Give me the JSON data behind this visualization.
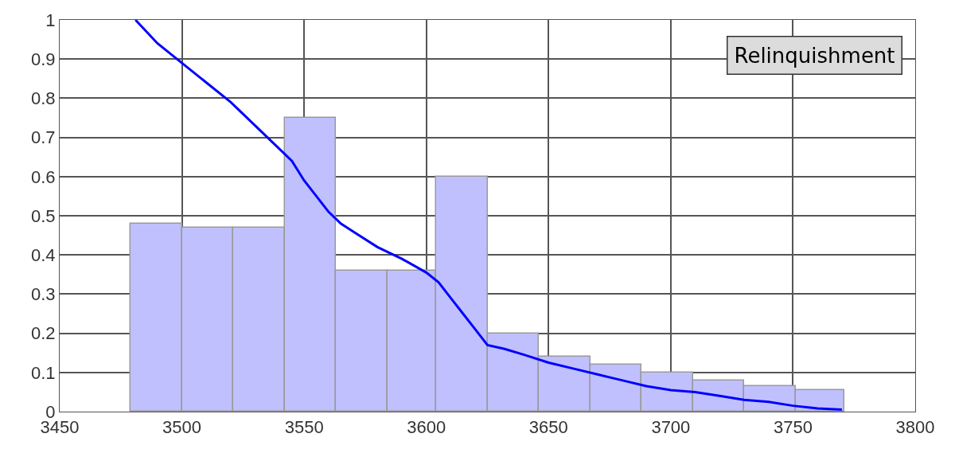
{
  "chart_data": {
    "type": "histogram",
    "bins": [
      3479,
      3500,
      3521,
      3542,
      3563,
      3584,
      3604,
      3625,
      3646,
      3667,
      3688,
      3709,
      3730,
      3751,
      3771
    ],
    "values": [
      0.48,
      0.47,
      0.47,
      0.75,
      0.36,
      0.36,
      0.6,
      0.2,
      0.14,
      0.12,
      0.1,
      0.08,
      0.065,
      0.055
    ],
    "color": "#c0c0ff",
    "series": [
      {
        "type": "line",
        "color": "#0000ff",
        "x": [
          3481,
          3490,
          3500,
          3510,
          3520,
          3530,
          3540,
          3545,
          3550,
          3555,
          3560,
          3565,
          3570,
          3580,
          3590,
          3600,
          3605,
          3610,
          3615,
          3620,
          3625,
          3632,
          3640,
          3650,
          3660,
          3670,
          3680,
          3690,
          3700,
          3710,
          3720,
          3730,
          3740,
          3750,
          3760,
          3770
        ],
        "values": [
          1.0,
          0.94,
          0.89,
          0.84,
          0.79,
          0.73,
          0.67,
          0.64,
          0.59,
          0.55,
          0.51,
          0.48,
          0.46,
          0.42,
          0.39,
          0.355,
          0.33,
          0.29,
          0.25,
          0.21,
          0.17,
          0.16,
          0.145,
          0.125,
          0.11,
          0.095,
          0.08,
          0.065,
          0.055,
          0.05,
          0.04,
          0.03,
          0.025,
          0.015,
          0.008,
          0.005
        ]
      }
    ],
    "annotations": [
      "Relinquishment"
    ],
    "xlim": [
      3450,
      3800
    ],
    "xticks": [
      3450,
      3500,
      3550,
      3600,
      3650,
      3700,
      3750,
      3800
    ],
    "ylim": [
      0,
      1
    ],
    "yticks": [
      0,
      0.1,
      0.2,
      0.3,
      0.4,
      0.5,
      0.6,
      0.7,
      0.8,
      0.9,
      1
    ],
    "grid": true
  }
}
